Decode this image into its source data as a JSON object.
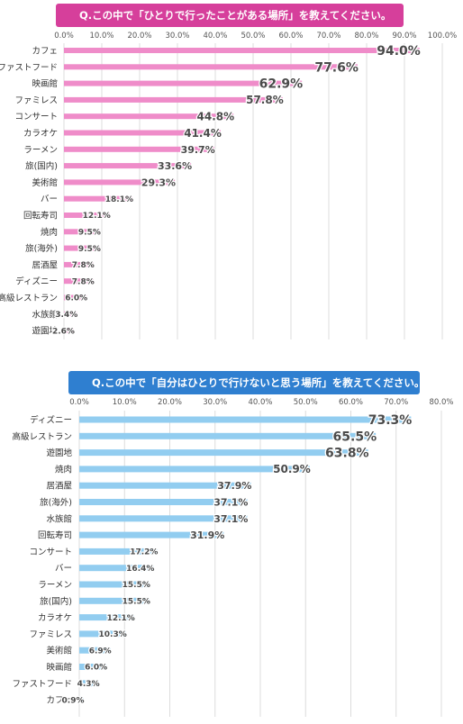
{
  "chart_data": [
    {
      "type": "bar",
      "orientation": "horizontal",
      "title": "Q.この中で「ひとりで行ったことがある場所」を教えてください。",
      "title_bg": "#d63f9b",
      "bar_color": "#ef8cc9",
      "categories": [
        "カフェ",
        "ファストフード",
        "映画館",
        "ファミレス",
        "コンサート",
        "カラオケ",
        "ラーメン",
        "旅(国内)",
        "美術館",
        "バー",
        "回転寿司",
        "焼肉",
        "旅(海外)",
        "居酒屋",
        "ディズニー",
        "高級レストラン",
        "水族館",
        "遊園地"
      ],
      "values": [
        94.0,
        77.6,
        62.9,
        57.8,
        44.8,
        41.4,
        39.7,
        33.6,
        29.3,
        18.1,
        12.1,
        9.5,
        9.5,
        7.8,
        7.8,
        6.0,
        3.4,
        2.6
      ],
      "data_labels": [
        "94.0%",
        "77.6%",
        "62.9%",
        "57.8%",
        "44.8%",
        "41.4%",
        "39.7%",
        "33.6%",
        "29.3%",
        "18.1%",
        "12.1%",
        "9.5%",
        "9.5%",
        "7.8%",
        "7.8%",
        "6.0%",
        "3.4%",
        "2.6%"
      ],
      "xticks": [
        "0.0%",
        "10.0%",
        "20.0%",
        "30.0%",
        "40.0%",
        "50.0%",
        "60.0%",
        "70.0%",
        "80.0%",
        "90.0%",
        "100.0%"
      ],
      "xlim": [
        0,
        100
      ],
      "grid": true
    },
    {
      "type": "bar",
      "orientation": "horizontal",
      "title": "Q.この中で「自分はひとりで行けないと思う場所」を教えてください。",
      "title_bg": "#2f7fd0",
      "bar_color": "#92cdf0",
      "categories": [
        "ディズニー",
        "高級レストラン",
        "遊園地",
        "焼肉",
        "居酒屋",
        "旅(海外)",
        "水族館",
        "回転寿司",
        "コンサート",
        "バー",
        "ラーメン",
        "旅(国内)",
        "カラオケ",
        "ファミレス",
        "美術館",
        "映画館",
        "ファストフード",
        "カフェ"
      ],
      "values": [
        73.3,
        65.5,
        63.8,
        50.9,
        37.9,
        37.1,
        37.1,
        31.9,
        17.2,
        16.4,
        15.5,
        15.5,
        12.1,
        10.3,
        6.9,
        6.0,
        4.3,
        0.9
      ],
      "data_labels": [
        "73.3%",
        "65.5%",
        "63.8%",
        "50.9%",
        "37.9%",
        "37.1%",
        "37.1%",
        "31.9%",
        "17.2%",
        "16.4%",
        "15.5%",
        "15.5%",
        "12.1%",
        "10.3%",
        "6.9%",
        "6.0%",
        "4.3%",
        "0.9%"
      ],
      "xticks": [
        "0.0%",
        "10.0%",
        "20.0%",
        "30.0%",
        "40.0%",
        "50.0%",
        "60.0%",
        "70.0%",
        "80.0%"
      ],
      "xlim": [
        0,
        80
      ],
      "grid": true
    }
  ]
}
